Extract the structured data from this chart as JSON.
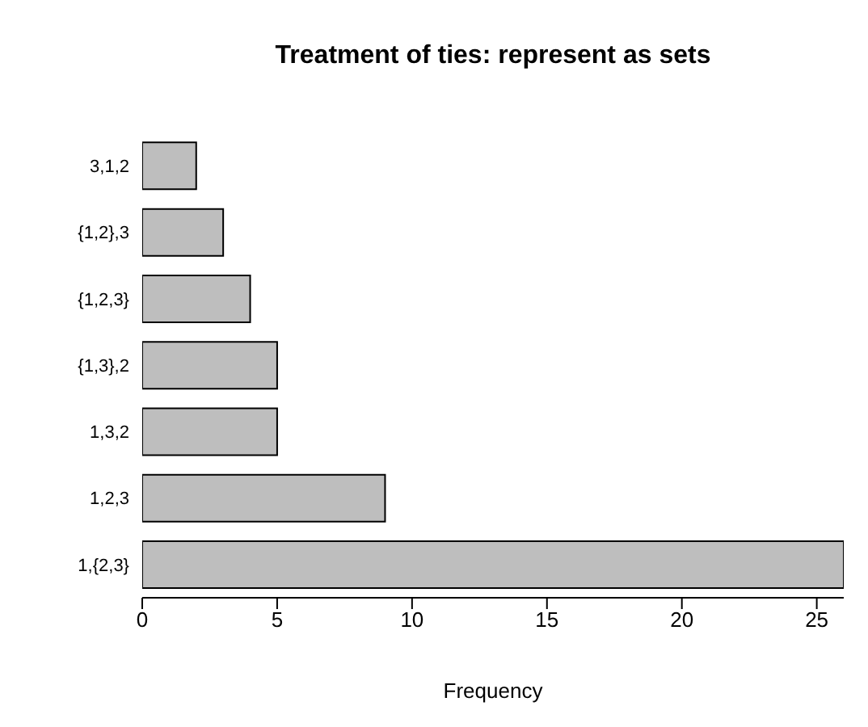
{
  "chart_data": {
    "type": "bar",
    "orientation": "horizontal",
    "title": "Treatment of ties: represent as sets",
    "xlabel": "Frequency",
    "categories": [
      "3,1,2",
      "{1,2},3",
      "{1,2,3}",
      "{1,3},2",
      "1,3,2",
      "1,2,3",
      "1,{2,3}"
    ],
    "values": [
      2,
      3,
      4,
      5,
      5,
      9,
      26
    ],
    "color": "#bebebe",
    "xlim": [
      0,
      26
    ],
    "xticks": [
      0,
      5,
      10,
      15,
      20,
      25
    ],
    "grid": false
  }
}
